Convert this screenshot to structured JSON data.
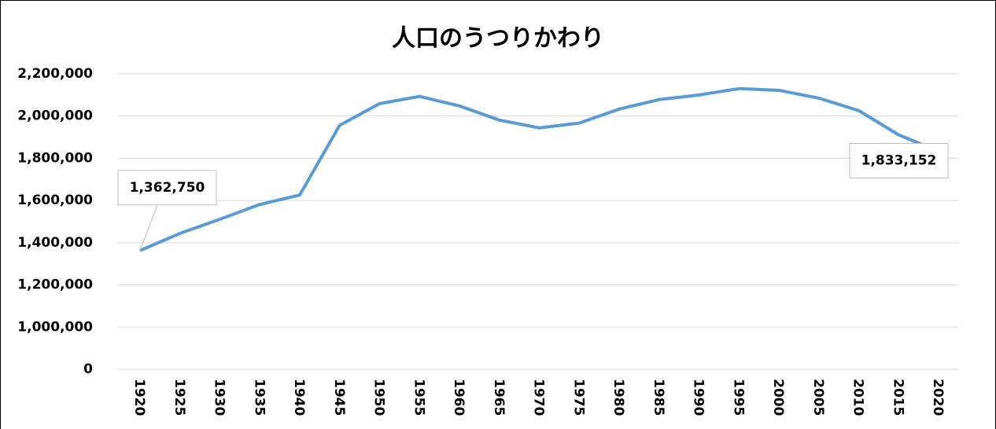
{
  "chart_data": {
    "type": "line",
    "title": "人口のうつりかわり",
    "categories": [
      "1920",
      "1925",
      "1930",
      "1935",
      "1940",
      "1945",
      "1950",
      "1955",
      "1960",
      "1965",
      "1970",
      "1975",
      "1980",
      "1985",
      "1990",
      "1995",
      "2000",
      "2005",
      "2010",
      "2015",
      "2020"
    ],
    "series": [
      {
        "name": "人口",
        "color": "#5b9bd5",
        "values": [
          1362750,
          1444000,
          1511000,
          1581000,
          1626000,
          1956000,
          2059000,
          2093000,
          2048000,
          1981000,
          1944000,
          1967000,
          2033000,
          2078000,
          2100000,
          2130000,
          2122000,
          2085000,
          2026000,
          1911000,
          1833152
        ],
        "value_labels": [
          "1,362,750",
          null,
          null,
          null,
          null,
          null,
          null,
          null,
          null,
          null,
          null,
          null,
          null,
          null,
          null,
          null,
          null,
          null,
          null,
          null,
          "1,833,152"
        ]
      }
    ],
    "ylim": [
      0,
      2200000
    ],
    "yticks": [
      0,
      {
        "value": 1000000,
        "label": "1,000,000"
      },
      {
        "value": 1200000,
        "label": "1,200,000"
      },
      {
        "value": 1400000,
        "label": "1,400,000"
      },
      {
        "value": 1600000,
        "label": "1,600,000"
      },
      {
        "value": 1800000,
        "label": "1,800,000"
      },
      {
        "value": 2000000,
        "label": "2,000,000"
      },
      {
        "value": 2200000,
        "label": "2,200,000"
      }
    ],
    "grid": true
  }
}
